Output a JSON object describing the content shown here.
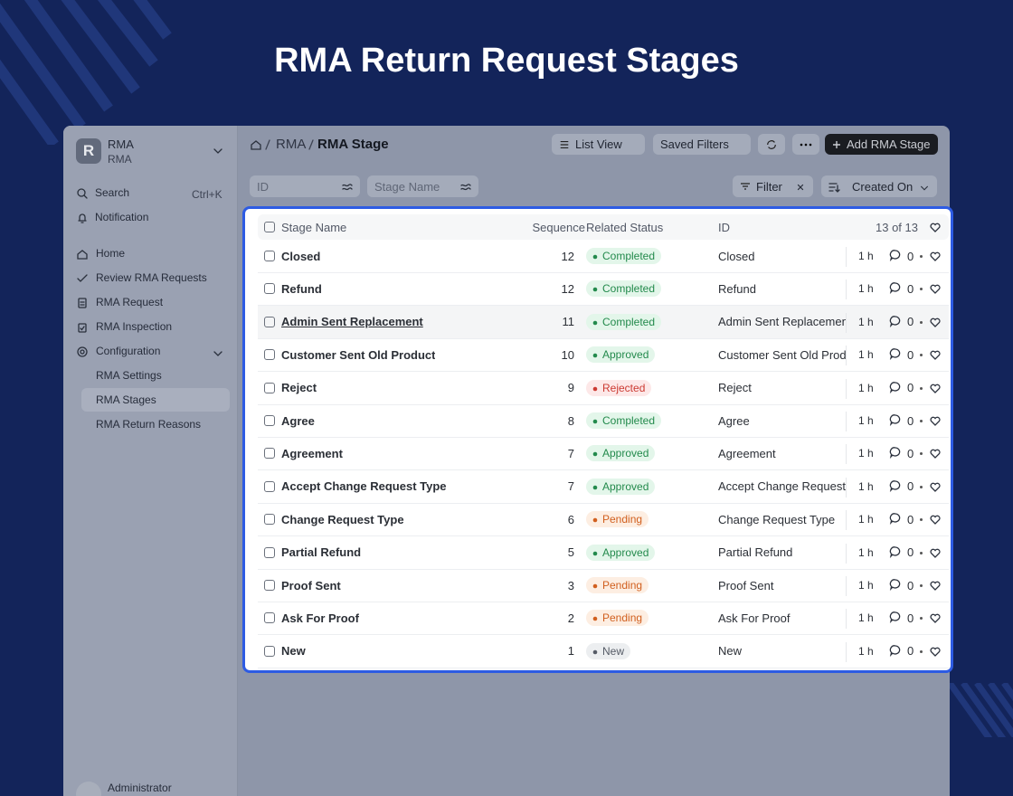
{
  "title": "RMA Return Request Stages",
  "sidebar": {
    "initial": "R",
    "app_name": "RMA",
    "app_sub": "RMA",
    "search": "Search",
    "shortcut": "Ctrl+K",
    "notification": "Notification",
    "nav": [
      "Home",
      "Review RMA Requests",
      "RMA Request",
      "RMA Inspection",
      "Configuration"
    ],
    "subnav": [
      "RMA Settings",
      "RMA Stages",
      "RMA Return Reasons"
    ],
    "user": "Administrator"
  },
  "header": {
    "breadcrumbs": [
      "RMA",
      "RMA Stage"
    ],
    "list_view": "List View",
    "saved_filters": "Saved Filters",
    "add": "Add RMA Stage"
  },
  "filters": {
    "id": "ID",
    "stage_name": "Stage Name",
    "filter": "Filter",
    "sort": "Created On"
  },
  "table": {
    "columns": [
      "Stage Name",
      "Sequence",
      "Related Status",
      "ID"
    ],
    "count": "13 of 13",
    "rows": [
      {
        "name": "Closed",
        "sequence": 12,
        "status": "Completed",
        "status_color": "green",
        "id": "Closed",
        "time": "1 h",
        "comments": 0
      },
      {
        "name": "Refund",
        "sequence": 12,
        "status": "Completed",
        "status_color": "green",
        "id": "Refund",
        "time": "1 h",
        "comments": 0
      },
      {
        "name": "Admin Sent Replacement",
        "sequence": 11,
        "status": "Completed",
        "status_color": "green",
        "id": "Admin Sent Replacement",
        "time": "1 h",
        "comments": 0
      },
      {
        "name": "Customer Sent Old Product",
        "sequence": 10,
        "status": "Approved",
        "status_color": "green",
        "id": "Customer Sent Old Product",
        "time": "1 h",
        "comments": 0
      },
      {
        "name": "Reject",
        "sequence": 9,
        "status": "Rejected",
        "status_color": "red",
        "id": "Reject",
        "time": "1 h",
        "comments": 0
      },
      {
        "name": "Agree",
        "sequence": 8,
        "status": "Completed",
        "status_color": "green",
        "id": "Agree",
        "time": "1 h",
        "comments": 0
      },
      {
        "name": "Agreement",
        "sequence": 7,
        "status": "Approved",
        "status_color": "green",
        "id": "Agreement",
        "time": "1 h",
        "comments": 0
      },
      {
        "name": "Accept Change Request Type",
        "sequence": 7,
        "status": "Approved",
        "status_color": "green",
        "id": "Accept Change Request Type",
        "time": "1 h",
        "comments": 0
      },
      {
        "name": "Change Request Type",
        "sequence": 6,
        "status": "Pending",
        "status_color": "orange",
        "id": "Change Request Type",
        "time": "1 h",
        "comments": 0
      },
      {
        "name": "Partial Refund",
        "sequence": 5,
        "status": "Approved",
        "status_color": "green",
        "id": "Partial Refund",
        "time": "1 h",
        "comments": 0
      },
      {
        "name": "Proof Sent",
        "sequence": 3,
        "status": "Pending",
        "status_color": "orange",
        "id": "Proof Sent",
        "time": "1 h",
        "comments": 0
      },
      {
        "name": "Ask For Proof",
        "sequence": 2,
        "status": "Pending",
        "status_color": "orange",
        "id": "Ask For Proof",
        "time": "1 h",
        "comments": 0
      },
      {
        "name": "New",
        "sequence": 1,
        "status": "New",
        "status_color": "gray",
        "id": "New",
        "time": "1 h",
        "comments": 0
      }
    ]
  }
}
